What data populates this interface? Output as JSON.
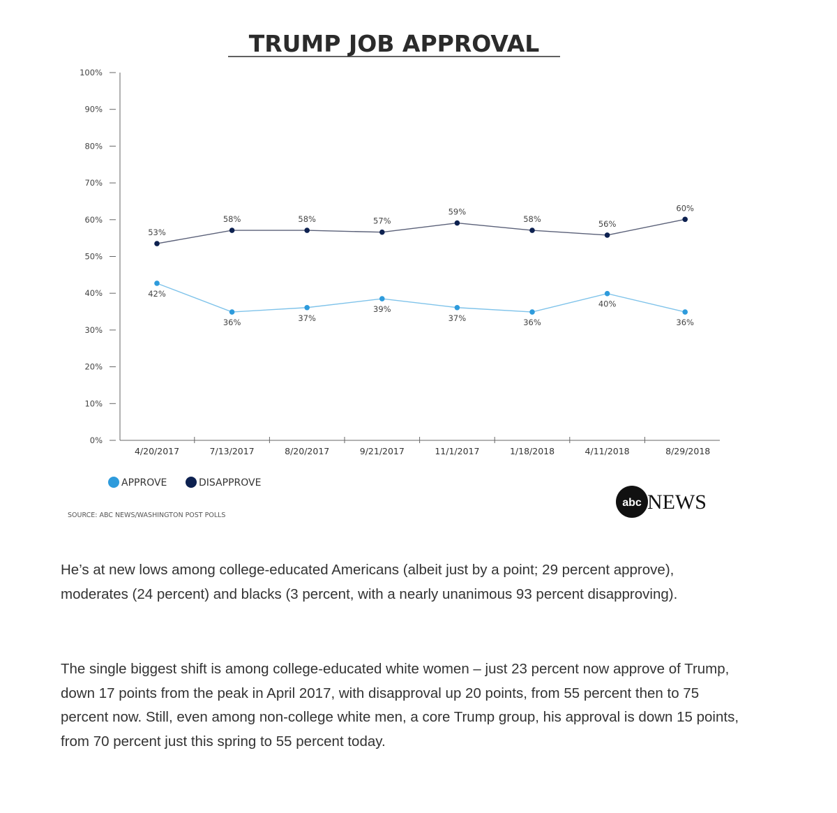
{
  "chart_data": {
    "type": "line",
    "title": "TRUMP JOB APPROVAL",
    "categories": [
      "4/20/2017",
      "7/13/2017",
      "8/20/2017",
      "9/21/2017",
      "11/1/2017",
      "1/18/2018",
      "4/11/2018",
      "8/29/2018"
    ],
    "y_ticks": [
      "0%",
      "10%",
      "20%",
      "30%",
      "40%",
      "50%",
      "60%",
      "70%",
      "80%",
      "90%",
      "100%"
    ],
    "ylim": [
      0,
      100
    ],
    "series": [
      {
        "name": "DISAPPROVE",
        "color": "#0d2150",
        "values": [
          53,
          58,
          58,
          57,
          59,
          58,
          56,
          60
        ],
        "labels": [
          "53%",
          "58%",
          "58%",
          "57%",
          "59%",
          "58%",
          "56%",
          "60%"
        ],
        "plotted": [
          53.5,
          57.1,
          57.1,
          56.6,
          59.1,
          57.1,
          55.8,
          60.1
        ]
      },
      {
        "name": "APPROVE",
        "color": "#2e9bdc",
        "values": [
          42,
          36,
          37,
          39,
          37,
          36,
          40,
          36
        ],
        "labels": [
          "42%",
          "36%",
          "37%",
          "39%",
          "37%",
          "36%",
          "40%",
          "36%"
        ],
        "plotted": [
          42.7,
          34.9,
          36.1,
          38.5,
          36.1,
          34.9,
          39.9,
          34.9
        ]
      }
    ],
    "legend": {
      "placement": "bottom-left",
      "items": [
        "APPROVE",
        "DISAPPROVE"
      ]
    },
    "source": "SOURCE: ABC NEWS/WASHINGTON POST POLLS",
    "logo": {
      "mark": "abc",
      "word": "NEWS"
    },
    "grid": false
  },
  "article": {
    "paragraphs": [
      "He’s at new lows among college-educated Americans (albeit just by a point; 29 percent approve), moderates (24 percent) and blacks (3 percent, with a nearly unanimous 93 percent disapproving).",
      "The single biggest shift is among college-educated white women – just 23 percent now approve of Trump, down 17 points from the peak in April 2017, with disapproval up 20 points, from 55 percent then to 75 percent now. Still, even among non-college white men, a core Trump group, his approval is down 15 points, from 70 percent just this spring to 55 percent today."
    ]
  }
}
